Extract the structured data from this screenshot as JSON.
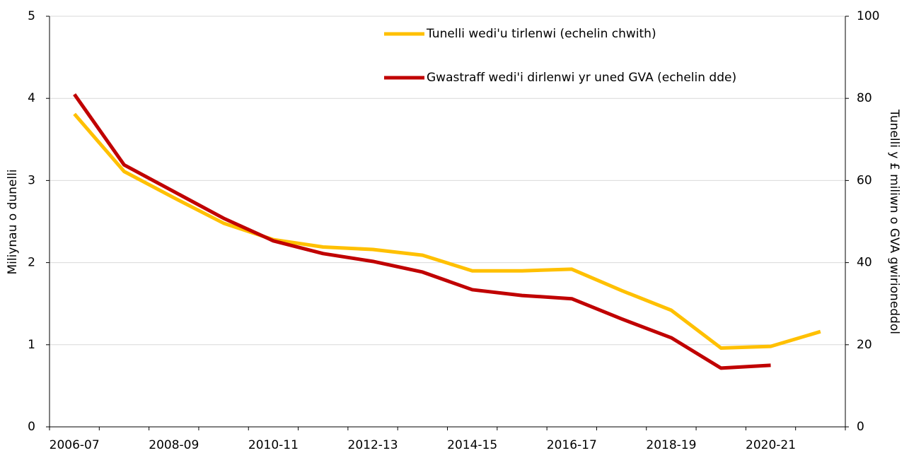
{
  "chart_data": {
    "type": "line",
    "categories": [
      "2006-07",
      null,
      "2008-09",
      null,
      "2010-11",
      null,
      "2012-13",
      null,
      "2014-15",
      null,
      "2016-17",
      null,
      "2018-19",
      null,
      "2020-21",
      null
    ],
    "y_label": "Miliynau o dunelli",
    "y2_label": "Tunelli y £ miliwn o GVA gwirioneddol",
    "ylim": [
      0,
      5
    ],
    "yticks": [
      0,
      1,
      2,
      3,
      4,
      5
    ],
    "y2lim": [
      0,
      100
    ],
    "y2ticks": [
      0,
      20,
      40,
      60,
      80,
      100
    ],
    "grid": true,
    "legend": "top-right",
    "series": [
      {
        "name": "Tunelli wedi'u tirlenwi (echelin chwith)",
        "color": "#ffc000",
        "axis": "y",
        "values": [
          3.81,
          3.11,
          2.79,
          2.48,
          2.28,
          2.19,
          2.16,
          2.09,
          1.9,
          1.9,
          1.92,
          1.66,
          1.42,
          0.96,
          0.98,
          1.16
        ]
      },
      {
        "name": "Gwastraff wedi'i dirlenwi yr uned GVA (echelin dde)",
        "color": "#c00000",
        "axis": "y2",
        "values": [
          81,
          63.8,
          57.3,
          50.8,
          45.3,
          42.2,
          40.3,
          37.7,
          33.4,
          32.0,
          31.2,
          26.3,
          21.7,
          14.3,
          15.0,
          null
        ]
      }
    ]
  }
}
